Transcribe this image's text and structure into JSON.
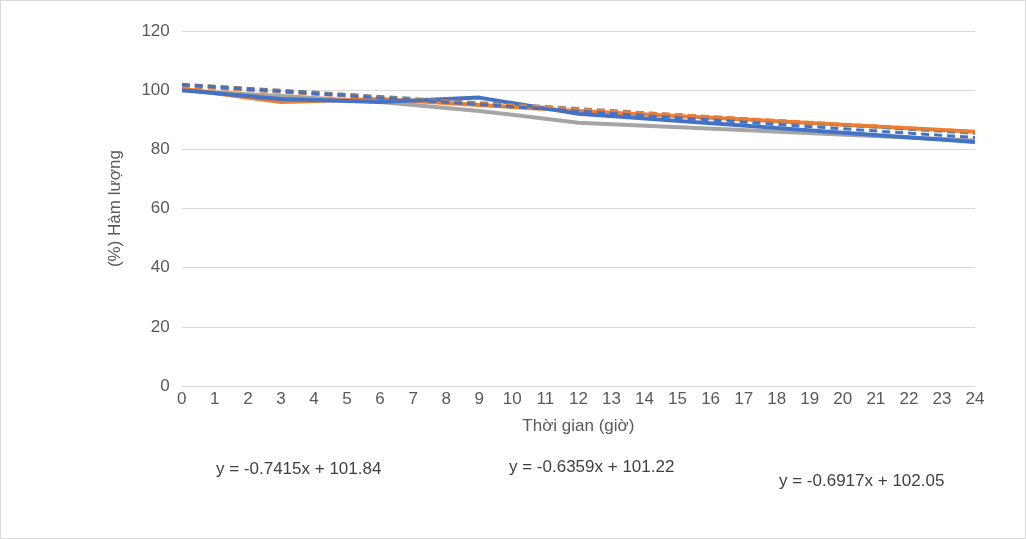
{
  "chart_data": {
    "type": "line",
    "xlabel": "Thời gian (giờ)",
    "ylabel": "(%) Hàm lượng",
    "x": [
      0,
      3,
      6,
      9,
      12,
      24
    ],
    "series": [
      {
        "color": "#4472c4",
        "values": [
          100,
          97,
          96,
          97.5,
          92,
          82.5
        ]
      },
      {
        "color": "#ed7d31",
        "values": [
          100.5,
          96,
          97,
          95,
          93,
          86
        ]
      },
      {
        "color": "#a5a5a5",
        "values": [
          100,
          98,
          96,
          93,
          89,
          83
        ]
      },
      {
        "color": "#4472c4",
        "line_style": "dashed",
        "values": [
          101.8,
          99.6,
          97.4,
          95.2,
          92.9,
          84.0
        ]
      },
      {
        "color": "#ed7d31",
        "line_style": "dashed",
        "values": [
          101.2,
          99.3,
          97.4,
          95.5,
          93.6,
          86.0
        ]
      },
      {
        "color": "#7f7f7f",
        "line_style": "dashed",
        "values": [
          102.0,
          100.0,
          97.9,
          95.8,
          93.8,
          85.4
        ]
      }
    ],
    "xlim": [
      0,
      24
    ],
    "xticks": [
      0,
      1,
      2,
      3,
      4,
      5,
      6,
      7,
      8,
      9,
      10,
      11,
      12,
      13,
      14,
      15,
      16,
      17,
      18,
      19,
      20,
      21,
      22,
      23,
      24
    ],
    "ylim": [
      0,
      120
    ],
    "yticks": [
      0,
      20,
      40,
      60,
      80,
      100,
      120
    ],
    "grid": "y",
    "legend": false,
    "marker": "none",
    "line_style": "solid",
    "annotations": [
      "y = -0.7415x + 101.84",
      "y = -0.6359x + 101.22",
      "y = -0.6917x + 102.05"
    ]
  }
}
